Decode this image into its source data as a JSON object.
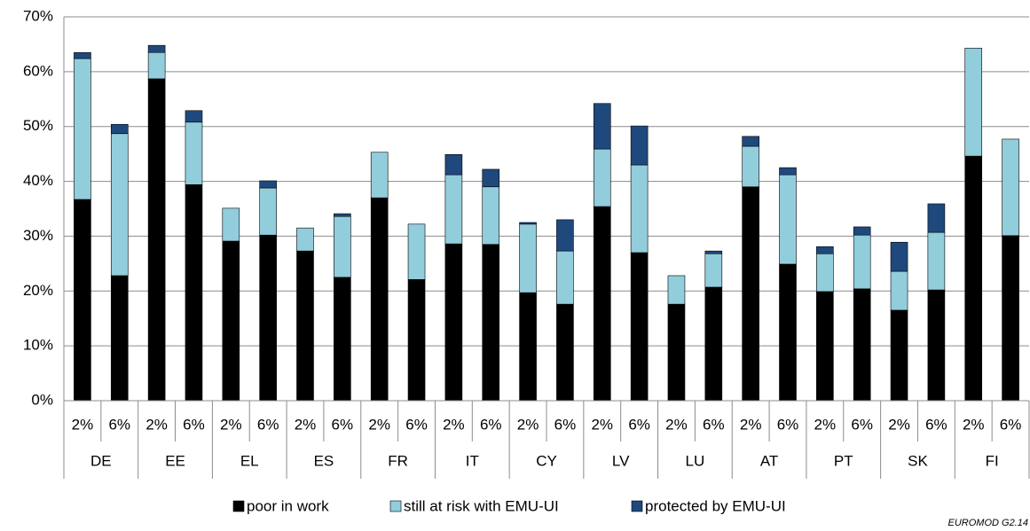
{
  "chart_data": {
    "type": "stacked_bar",
    "groups": [
      "DE",
      "EE",
      "EL",
      "ES",
      "FR",
      "IT",
      "CY",
      "LV",
      "LU",
      "AT",
      "PT",
      "SK",
      "FI"
    ],
    "categories": [
      "2%",
      "6%",
      "2%",
      "6%",
      "2%",
      "6%",
      "2%",
      "6%",
      "2%",
      "6%",
      "2%",
      "6%",
      "2%",
      "6%",
      "2%",
      "6%",
      "2%",
      "6%",
      "2%",
      "6%",
      "2%",
      "6%",
      "2%",
      "6%",
      "2%",
      "6%"
    ],
    "series": [
      {
        "name": "poor in work",
        "color": "#000000",
        "values": [
          36.7,
          22.8,
          58.7,
          39.4,
          29.1,
          30.2,
          27.3,
          22.5,
          37.0,
          22.1,
          28.6,
          28.5,
          19.7,
          17.6,
          35.4,
          27.0,
          17.6,
          20.7,
          39.0,
          24.9,
          19.9,
          20.4,
          16.5,
          20.2,
          44.6,
          30.1
        ]
      },
      {
        "name": "still at risk with EMU-UI",
        "color": "#92cddc",
        "values": [
          25.7,
          25.9,
          4.8,
          11.4,
          6.0,
          8.6,
          4.2,
          11.1,
          8.3,
          10.1,
          12.6,
          10.5,
          12.5,
          9.7,
          10.5,
          16.0,
          5.2,
          6.1,
          7.4,
          16.3,
          6.9,
          9.8,
          7.1,
          10.5,
          19.7,
          17.6
        ]
      },
      {
        "name": "protected by EMU-UI",
        "color": "#1f497d",
        "values": [
          1.1,
          1.7,
          1.3,
          2.1,
          0,
          1.3,
          0,
          0.5,
          0,
          0,
          3.7,
          3.2,
          0.3,
          5.7,
          8.3,
          7.1,
          0,
          0.5,
          1.8,
          1.3,
          1.3,
          1.5,
          5.3,
          5.2,
          0,
          0
        ]
      }
    ],
    "ylim": [
      0,
      70
    ],
    "yticks": [
      {
        "value": 0,
        "label": "0%"
      },
      {
        "value": 10,
        "label": "10%"
      },
      {
        "value": 20,
        "label": "20%"
      },
      {
        "value": 30,
        "label": "30%"
      },
      {
        "value": 40,
        "label": "40%"
      },
      {
        "value": 50,
        "label": "50%"
      },
      {
        "value": 60,
        "label": "60%"
      },
      {
        "value": 70,
        "label": "70%"
      }
    ],
    "grid": true,
    "legend": "bottom",
    "note": "EUROMOD G2.14"
  }
}
